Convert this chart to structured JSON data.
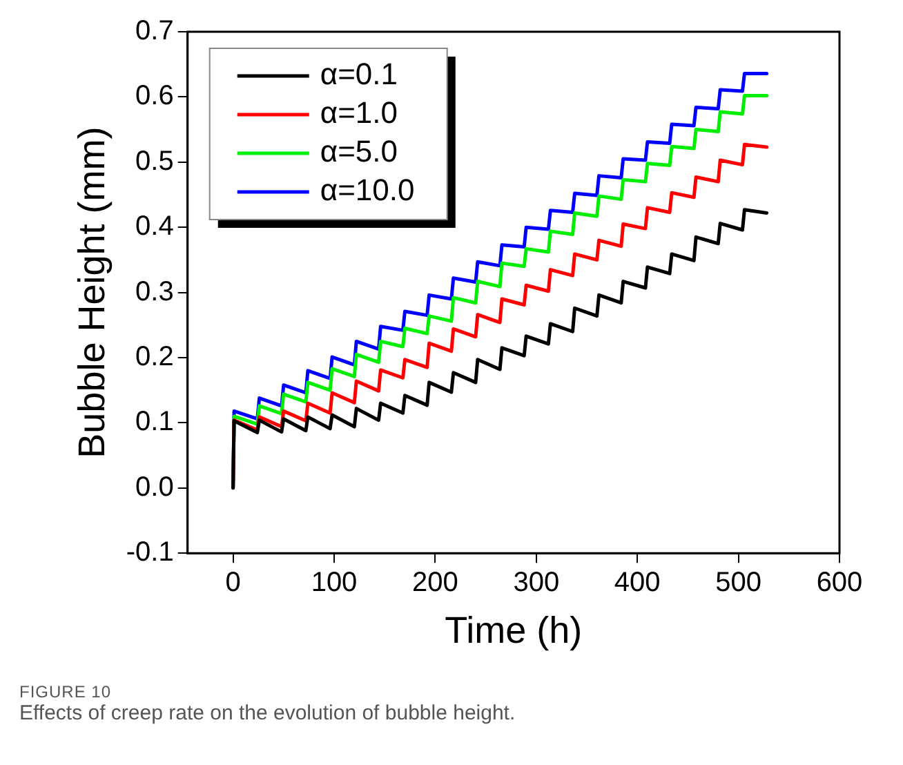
{
  "chart_data": {
    "type": "line",
    "xlabel": "Time (h)",
    "ylabel": "Bubble Height (mm)",
    "annotations": [
      "FIGURE 10",
      "Effects of creep rate on the evolution of bubble height."
    ],
    "x": [
      0,
      1,
      24,
      26,
      48,
      50,
      72,
      74,
      96,
      98,
      120,
      122,
      144,
      146,
      168,
      170,
      192,
      194,
      216,
      218,
      240,
      242,
      264,
      266,
      288,
      290,
      312,
      314,
      336,
      338,
      360,
      362,
      384,
      386,
      408,
      410,
      432,
      434,
      456,
      458,
      480,
      482,
      504,
      506,
      528
    ],
    "series": [
      {
        "name": "α=0.1",
        "color": "#000000",
        "values": [
          0,
          0.103,
          0.085,
          0.104,
          0.086,
          0.106,
          0.088,
          0.109,
          0.091,
          0.112,
          0.094,
          0.122,
          0.104,
          0.13,
          0.115,
          0.142,
          0.127,
          0.162,
          0.147,
          0.177,
          0.162,
          0.197,
          0.182,
          0.215,
          0.203,
          0.233,
          0.221,
          0.252,
          0.24,
          0.276,
          0.264,
          0.296,
          0.284,
          0.317,
          0.307,
          0.339,
          0.329,
          0.359,
          0.349,
          0.385,
          0.375,
          0.406,
          0.396,
          0.427,
          0.422
        ]
      },
      {
        "name": "α=1.0",
        "color": "#ff0000",
        "values": [
          0,
          0.104,
          0.089,
          0.109,
          0.094,
          0.118,
          0.103,
          0.13,
          0.115,
          0.146,
          0.131,
          0.164,
          0.149,
          0.181,
          0.169,
          0.197,
          0.185,
          0.222,
          0.21,
          0.244,
          0.232,
          0.266,
          0.254,
          0.29,
          0.281,
          0.311,
          0.302,
          0.335,
          0.326,
          0.359,
          0.35,
          0.38,
          0.371,
          0.405,
          0.398,
          0.43,
          0.423,
          0.453,
          0.446,
          0.477,
          0.47,
          0.503,
          0.496,
          0.527,
          0.523
        ]
      },
      {
        "name": "α=5.0",
        "color": "#00ee00",
        "values": [
          0,
          0.11,
          0.098,
          0.126,
          0.114,
          0.144,
          0.132,
          0.162,
          0.15,
          0.183,
          0.171,
          0.205,
          0.193,
          0.225,
          0.217,
          0.245,
          0.237,
          0.264,
          0.256,
          0.292,
          0.284,
          0.317,
          0.309,
          0.345,
          0.34,
          0.367,
          0.362,
          0.394,
          0.389,
          0.422,
          0.417,
          0.448,
          0.443,
          0.473,
          0.47,
          0.498,
          0.495,
          0.524,
          0.521,
          0.55,
          0.547,
          0.577,
          0.574,
          0.602,
          0.602
        ]
      },
      {
        "name": "α=10.0",
        "color": "#0000ff",
        "values": [
          0,
          0.118,
          0.106,
          0.138,
          0.126,
          0.158,
          0.146,
          0.18,
          0.168,
          0.201,
          0.189,
          0.225,
          0.213,
          0.248,
          0.242,
          0.271,
          0.265,
          0.296,
          0.29,
          0.322,
          0.316,
          0.347,
          0.341,
          0.373,
          0.37,
          0.4,
          0.397,
          0.426,
          0.423,
          0.452,
          0.449,
          0.479,
          0.476,
          0.505,
          0.503,
          0.531,
          0.529,
          0.558,
          0.556,
          0.584,
          0.582,
          0.611,
          0.609,
          0.636,
          0.636
        ]
      }
    ],
    "xlim": [
      -45,
      600
    ],
    "xticks": [
      0,
      100,
      200,
      300,
      400,
      500,
      600
    ],
    "ylim": [
      -0.1,
      0.7
    ],
    "yticks": [
      -0.1,
      {
        "value": 0,
        "label": "0.0"
      },
      0.1,
      0.2,
      0.3,
      0.4,
      0.5,
      0.6,
      0.7
    ],
    "grid": false,
    "legend": "top left",
    "marker": "none",
    "line_style": "solid"
  }
}
